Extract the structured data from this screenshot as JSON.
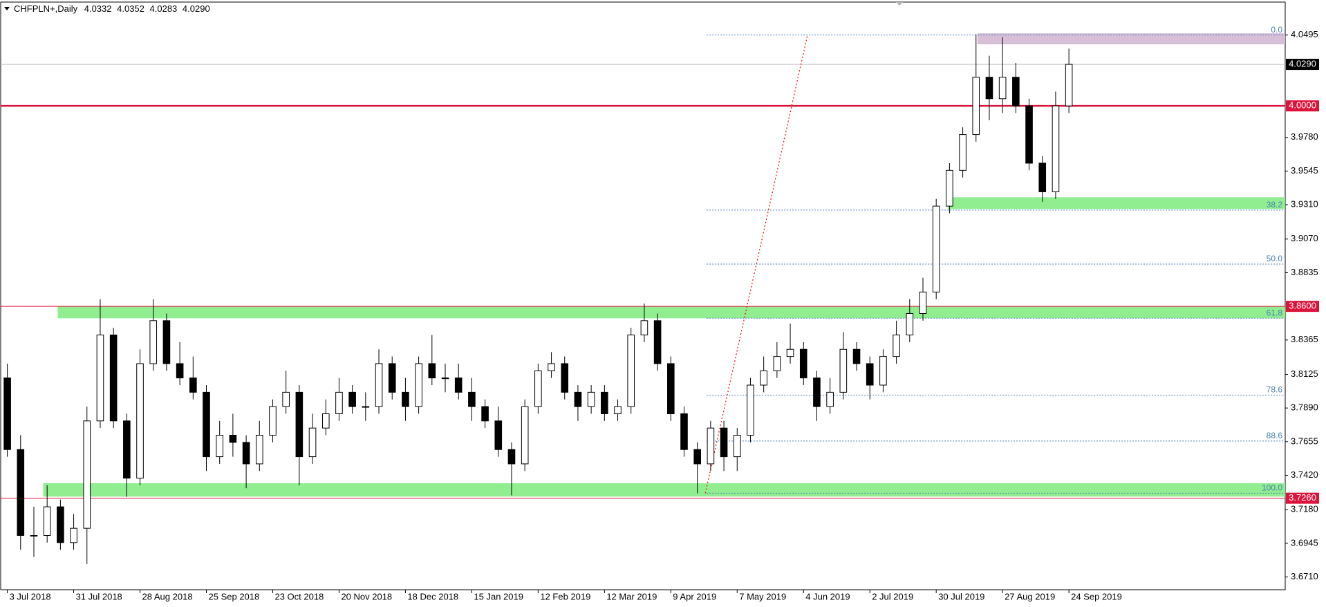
{
  "chart_data": {
    "type": "candlestick",
    "title": "CHFPLN+,Daily",
    "quote": [
      4.0332,
      4.0352,
      4.0283,
      {
        "value": 4.029,
        "label": "4.0290"
      }
    ],
    "open": [
      3.81,
      3.76,
      3.7,
      3.7,
      3.72,
      3.695,
      3.705,
      3.78,
      3.84,
      3.78,
      3.74,
      3.82,
      3.85,
      3.82,
      3.81,
      3.8,
      3.755,
      3.77,
      3.765,
      3.75,
      3.77,
      3.79,
      3.8,
      3.755,
      3.775,
      3.785,
      3.8,
      3.79,
      3.79,
      3.82,
      3.8,
      3.79,
      3.82,
      3.81,
      3.81,
      3.8,
      3.79,
      3.78,
      3.76,
      3.75,
      3.79,
      3.815,
      3.82,
      3.8,
      3.79,
      3.8,
      3.785,
      3.79,
      3.84,
      3.85,
      3.82,
      3.785,
      3.76,
      3.75,
      3.775,
      3.755,
      3.77,
      3.805,
      3.815,
      3.825,
      3.83,
      3.81,
      3.79,
      3.8,
      3.83,
      3.82,
      3.805,
      3.825,
      3.84,
      3.855,
      3.87,
      3.93,
      3.955,
      3.98,
      4.02,
      4.005,
      4.02,
      4.0,
      3.96,
      3.94,
      4.0
    ],
    "high": [
      3.82,
      3.77,
      3.72,
      3.735,
      3.725,
      3.715,
      3.79,
      3.865,
      3.845,
      3.785,
      3.83,
      3.865,
      3.855,
      3.835,
      3.825,
      3.805,
      3.78,
      3.785,
      3.77,
      3.78,
      3.795,
      3.815,
      3.805,
      3.785,
      3.795,
      3.81,
      3.805,
      3.8,
      3.83,
      3.825,
      3.81,
      3.825,
      3.84,
      3.82,
      3.82,
      3.81,
      3.795,
      3.79,
      3.765,
      3.795,
      3.82,
      3.828,
      3.825,
      3.805,
      3.805,
      3.805,
      3.795,
      3.845,
      3.862,
      3.855,
      3.825,
      3.79,
      3.765,
      3.78,
      3.78,
      3.775,
      3.81,
      3.825,
      3.835,
      3.848,
      3.835,
      3.815,
      3.81,
      3.842,
      3.835,
      3.825,
      3.83,
      3.85,
      3.865,
      3.88,
      3.935,
      3.96,
      3.985,
      4.05,
      4.035,
      4.048,
      4.03,
      4.005,
      3.965,
      4.01,
      4.04
    ],
    "low": [
      3.755,
      3.69,
      3.685,
      3.695,
      3.69,
      3.69,
      3.68,
      3.775,
      3.775,
      3.727,
      3.735,
      3.815,
      3.815,
      3.805,
      3.795,
      3.745,
      3.75,
      3.755,
      3.733,
      3.745,
      3.765,
      3.785,
      3.735,
      3.75,
      3.77,
      3.78,
      3.785,
      3.78,
      3.785,
      3.795,
      3.78,
      3.785,
      3.805,
      3.8,
      3.795,
      3.78,
      3.775,
      3.755,
      3.728,
      3.745,
      3.785,
      3.81,
      3.795,
      3.78,
      3.785,
      3.78,
      3.78,
      3.785,
      3.835,
      3.815,
      3.78,
      3.755,
      3.7295,
      3.745,
      3.745,
      3.745,
      3.765,
      3.8,
      3.81,
      3.82,
      3.805,
      3.78,
      3.785,
      3.795,
      3.815,
      3.795,
      3.8,
      3.82,
      3.835,
      3.85,
      3.865,
      3.925,
      3.95,
      3.975,
      3.99,
      3.995,
      3.995,
      3.955,
      3.933,
      3.935,
      3.995
    ],
    "close": [
      3.76,
      3.7,
      3.7,
      3.72,
      3.695,
      3.705,
      3.78,
      3.84,
      3.78,
      3.74,
      3.82,
      3.85,
      3.82,
      3.81,
      3.8,
      3.755,
      3.77,
      3.765,
      3.75,
      3.77,
      3.79,
      3.8,
      3.755,
      3.775,
      3.785,
      3.8,
      3.79,
      3.79,
      3.82,
      3.8,
      3.79,
      3.82,
      3.81,
      3.81,
      3.8,
      3.79,
      3.78,
      3.76,
      3.75,
      3.79,
      3.815,
      3.82,
      3.8,
      3.79,
      3.8,
      3.785,
      3.79,
      3.84,
      3.85,
      3.82,
      3.785,
      3.76,
      3.75,
      3.775,
      3.755,
      3.77,
      3.805,
      3.815,
      3.825,
      3.83,
      3.81,
      3.79,
      3.8,
      3.83,
      3.82,
      3.805,
      3.825,
      3.84,
      3.855,
      3.87,
      3.93,
      3.955,
      3.98,
      4.02,
      4.005,
      4.02,
      4.0,
      3.96,
      3.94,
      4.0,
      4.029
    ],
    "up_color": "#ffffff",
    "down_color": "#000000",
    "xlim": [
      -0.5,
      96.3
    ],
    "xticks": [
      {
        "value": 0,
        "label": "3 Jul 2018"
      },
      {
        "value": 5,
        "label": "31 Jul 2018"
      },
      {
        "value": 10,
        "label": "28 Aug 2018"
      },
      {
        "value": 15,
        "label": "25 Sep 2018"
      },
      {
        "value": 20,
        "label": "23 Oct 2018"
      },
      {
        "value": 25,
        "label": "20 Nov 2018"
      },
      {
        "value": 30,
        "label": "18 Dec 2018"
      },
      {
        "value": 35,
        "label": "15 Jan 2019"
      },
      {
        "value": 40,
        "label": "12 Feb 2019"
      },
      {
        "value": 45,
        "label": "12 Mar 2019"
      },
      {
        "value": 50,
        "label": "9 Apr 2019"
      },
      {
        "value": 55,
        "label": "7 May 2019"
      },
      {
        "value": 60,
        "label": "4 Jun 2019"
      },
      {
        "value": 65,
        "label": "2 Jul 2019"
      },
      {
        "value": 70,
        "label": "30 Jul 2019"
      },
      {
        "value": 75,
        "label": "27 Aug 2019"
      },
      {
        "value": 80,
        "label": "24 Sep 2019"
      }
    ],
    "ylim": [
      3.6621,
      4.0725
    ],
    "yticks": [
      4.0495,
      {
        "value": 3.978,
        "label": "3.9780"
      },
      3.9545,
      {
        "value": 3.931,
        "label": "3.9310"
      },
      {
        "value": 3.907,
        "label": "3.9070"
      },
      3.8835,
      3.8365,
      3.8125,
      {
        "value": 3.789,
        "label": "3.7890"
      },
      3.7655,
      {
        "value": 3.742,
        "label": "3.7420"
      },
      {
        "value": 3.718,
        "label": "3.7180"
      },
      3.6945,
      {
        "value": 3.671,
        "label": "3.6710"
      }
    ],
    "grid": false,
    "zones": [
      {
        "low": 4.043,
        "high": 4.0507,
        "start": 73.1,
        "color": "#d8bfd8"
      },
      {
        "low": 3.928,
        "high": 3.9362,
        "start": 70.9,
        "color": "#90ee90"
      },
      {
        "low": 3.8517,
        "high": 3.8599,
        "start": 3.8,
        "color": "#90ee90"
      },
      {
        "low": 3.7271,
        "high": 3.7365,
        "start": 2.7,
        "color": "#90ee90"
      }
    ],
    "price_lines": [
      {
        "value": 4.029,
        "label": "4.0290",
        "color": "#000000",
        "line_color": "#c0c0c0",
        "width": 1
      },
      {
        "value": 4,
        "label": "4.0000",
        "color": "#dc143c",
        "line_color": "#dc143c",
        "width": 2.5
      },
      {
        "value": 3.86,
        "label": "3.8600",
        "color": "#dc143c",
        "line_color": "#dc143c",
        "width": 1
      },
      {
        "value": 3.726,
        "label": "3.7260",
        "color": "#dc143c",
        "line_color": "#dc143c",
        "width": 1
      }
    ],
    "fibonacci": {
      "from": 3.7295,
      "to": 4.0495,
      "start": 52.7,
      "color": "#4a7fb5",
      "levels": [
        {
          "value": 0,
          "label": "0.0"
        },
        38.2,
        {
          "value": 50,
          "label": "50.0"
        },
        61.8,
        78.6,
        88.6,
        {
          "value": 100,
          "label": "100.0"
        }
      ]
    },
    "trendline": {
      "x": [
        52.6,
        60.3
      ],
      "y": [
        3.7295,
        4.0495
      ],
      "color": "#ff0000"
    }
  }
}
